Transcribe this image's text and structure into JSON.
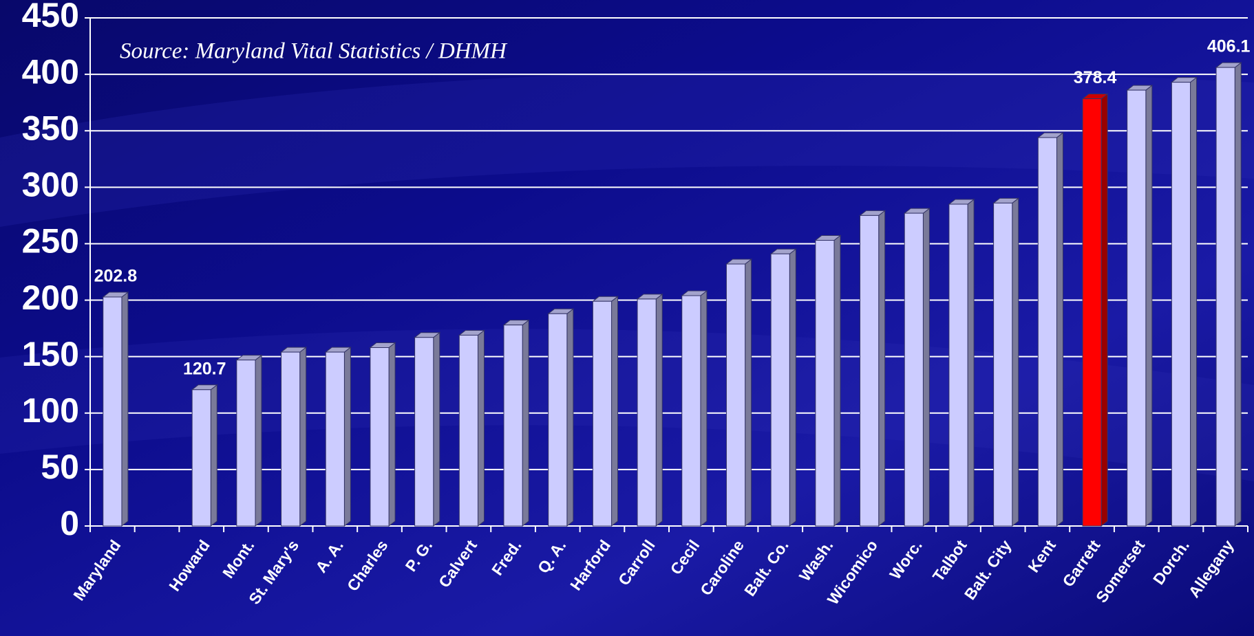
{
  "chart_data": {
    "type": "bar",
    "annotation": "Source:  Maryland Vital Statistics / DHMH",
    "categories": [
      "Maryland",
      null,
      "Howard",
      "Mont.",
      "St. Mary's",
      "A. A.",
      "Charles",
      "P. G.",
      "Calvert",
      "Fred.",
      "Q. A.",
      "Harford",
      "Carroll",
      "Cecil",
      "Caroline",
      "Balt. Co.",
      "Wash.",
      "Wicomico",
      "Worc.",
      "Talbot",
      "Balt. City",
      "Kent",
      "Garrett",
      "Somerset",
      "Dorch.",
      "Allegany"
    ],
    "values": [
      202.8,
      null,
      120.7,
      147,
      154,
      154,
      158,
      167,
      169,
      178,
      188,
      199,
      201,
      204,
      232,
      241,
      253,
      275,
      277,
      285,
      286,
      344,
      378.4,
      386,
      393,
      406.1
    ],
    "value_labels": [
      "202.8",
      null,
      "120.7",
      null,
      null,
      null,
      null,
      null,
      null,
      null,
      null,
      null,
      null,
      null,
      null,
      null,
      null,
      null,
      null,
      null,
      null,
      null,
      "378.4",
      null,
      null,
      "406.1"
    ],
    "colors": [
      "#ccccff",
      null,
      "#ccccff",
      "#ccccff",
      "#ccccff",
      "#ccccff",
      "#ccccff",
      "#ccccff",
      "#ccccff",
      "#ccccff",
      "#ccccff",
      "#ccccff",
      "#ccccff",
      "#ccccff",
      "#ccccff",
      "#ccccff",
      "#ccccff",
      "#ccccff",
      "#ccccff",
      "#ccccff",
      "#ccccff",
      "#ccccff",
      "#ff0000",
      "#ccccff",
      "#ccccff",
      "#ccccff"
    ],
    "ylim": [
      0,
      450
    ],
    "yticks": [
      0,
      50,
      100,
      150,
      200,
      250,
      300,
      350,
      400,
      450
    ],
    "grid": true
  }
}
